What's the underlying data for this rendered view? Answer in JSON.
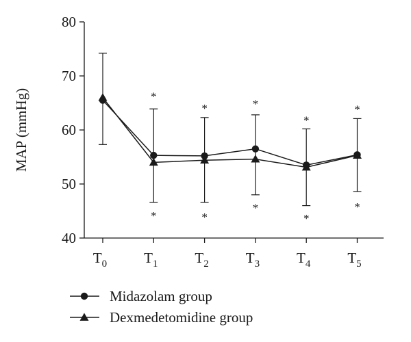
{
  "chart_data": {
    "type": "line",
    "ylabel": "MAP (mmHg)",
    "ylim": [
      40,
      80
    ],
    "yticks": [
      40,
      50,
      60,
      70,
      80
    ],
    "categories": [
      {
        "main": "T",
        "sub": "0"
      },
      {
        "main": "T",
        "sub": "1"
      },
      {
        "main": "T",
        "sub": "2"
      },
      {
        "main": "T",
        "sub": "3"
      },
      {
        "main": "T",
        "sub": "4"
      },
      {
        "main": "T",
        "sub": "5"
      }
    ],
    "series": [
      {
        "name": "Midazolam group",
        "marker": "circle",
        "values": [
          65.5,
          55.3,
          55.2,
          56.5,
          53.5,
          55.4
        ],
        "error_up": [
          74.2,
          63.9,
          62.3,
          62.8,
          60.2,
          62.1
        ],
        "error_down": [
          57.3,
          46.6,
          46.6,
          48.0,
          46.0,
          48.6
        ]
      },
      {
        "name": "Dexmedetomidine group",
        "marker": "triangle",
        "values": [
          66.0,
          54.0,
          54.4,
          54.6,
          53.1,
          55.3
        ],
        "error_up": [
          null,
          null,
          null,
          null,
          null,
          null
        ],
        "error_down": [
          null,
          null,
          null,
          null,
          null,
          null
        ]
      }
    ],
    "annotations": {
      "marker_text": "*",
      "upper": [
        null,
        66.5,
        64.3,
        65.1,
        62.1,
        64.1
      ],
      "lower": [
        null,
        44.4,
        44.2,
        45.9,
        43.9,
        46.1
      ]
    },
    "legend_position": "bottom-left",
    "line_color": "#1a1a1a"
  }
}
